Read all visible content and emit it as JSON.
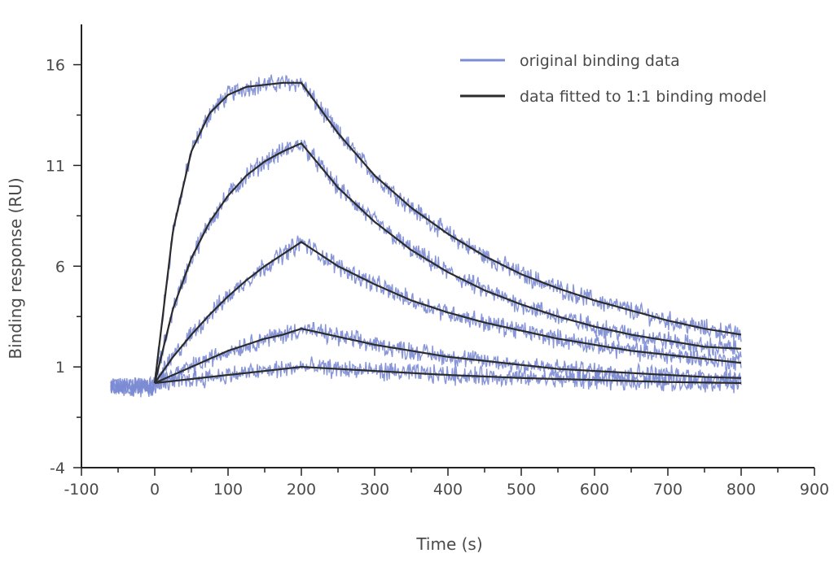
{
  "chart_data": {
    "type": "line",
    "xlabel": "Time (s)",
    "ylabel": "Binding response (RU)",
    "xlim": [
      -100,
      900
    ],
    "ylim": [
      -4,
      18
    ],
    "x_ticks": [
      -100,
      0,
      100,
      200,
      300,
      400,
      500,
      600,
      700,
      800,
      900
    ],
    "y_ticks": [
      -4,
      1,
      6,
      11,
      16
    ],
    "grid": false,
    "legend_position": "top-right",
    "legend": [
      {
        "label": "original binding data",
        "color": "#7b8bd4"
      },
      {
        "label": "data fitted to 1:1 binding model",
        "color": "#2b2b2b"
      }
    ],
    "series": [
      {
        "kind": "fitted",
        "x": [
          0,
          25,
          50,
          75,
          100,
          125,
          150,
          175,
          200,
          250,
          300,
          350,
          400,
          450,
          500,
          550,
          600,
          650,
          700,
          750,
          800
        ],
        "y": [
          0.2,
          7.8,
          11.7,
          13.6,
          14.5,
          14.9,
          15.0,
          15.1,
          15.1,
          12.6,
          10.5,
          8.9,
          7.6,
          6.5,
          5.6,
          4.9,
          4.3,
          3.8,
          3.3,
          2.9,
          2.6
        ]
      },
      {
        "kind": "fitted",
        "x": [
          0,
          25,
          50,
          75,
          100,
          125,
          150,
          175,
          200,
          250,
          300,
          350,
          400,
          450,
          500,
          550,
          600,
          650,
          700,
          750,
          800
        ],
        "y": [
          0.2,
          3.9,
          6.4,
          8.2,
          9.5,
          10.5,
          11.2,
          11.7,
          12.1,
          9.9,
          8.2,
          6.8,
          5.7,
          4.8,
          4.1,
          3.5,
          3.0,
          2.6,
          2.3,
          2.0,
          1.9
        ]
      },
      {
        "kind": "fitted",
        "x": [
          0,
          25,
          50,
          75,
          100,
          125,
          150,
          175,
          200,
          250,
          300,
          350,
          400,
          450,
          500,
          550,
          600,
          650,
          700,
          750,
          800
        ],
        "y": [
          0.2,
          1.5,
          2.6,
          3.6,
          4.5,
          5.3,
          6.0,
          6.6,
          7.2,
          6.0,
          5.1,
          4.3,
          3.7,
          3.2,
          2.8,
          2.4,
          2.1,
          1.8,
          1.6,
          1.4,
          1.2
        ]
      },
      {
        "kind": "fitted",
        "x": [
          0,
          25,
          50,
          75,
          100,
          125,
          150,
          175,
          200,
          250,
          300,
          350,
          400,
          450,
          500,
          550,
          600,
          650,
          700,
          750,
          800
        ],
        "y": [
          0.2,
          0.6,
          1.0,
          1.4,
          1.8,
          2.1,
          2.4,
          2.6,
          2.9,
          2.5,
          2.1,
          1.8,
          1.5,
          1.3,
          1.1,
          0.9,
          0.8,
          0.7,
          0.6,
          0.5,
          0.45
        ]
      },
      {
        "kind": "fitted",
        "x": [
          0,
          50,
          100,
          150,
          200,
          300,
          400,
          500,
          600,
          700,
          800
        ],
        "y": [
          0.2,
          0.4,
          0.6,
          0.8,
          1.0,
          0.8,
          0.6,
          0.45,
          0.35,
          0.25,
          0.2
        ]
      }
    ],
    "baseline": {
      "x": [
        -60,
        0
      ],
      "y": 0.0
    }
  }
}
